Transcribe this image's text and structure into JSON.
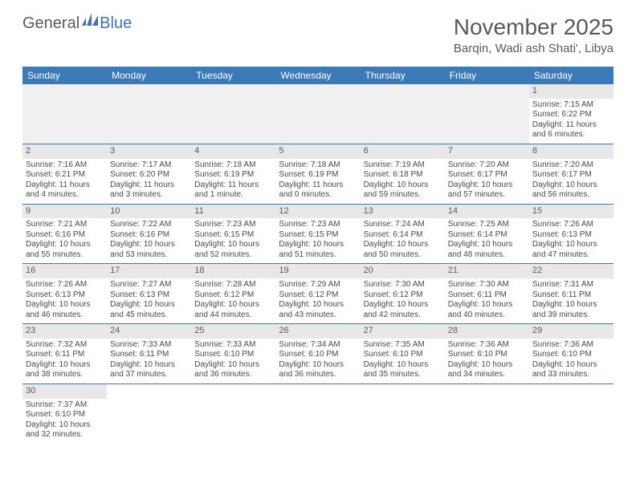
{
  "logo": {
    "general": "General",
    "blue": "Blue"
  },
  "title": "November 2025",
  "location": "Barqin, Wadi ash Shati', Libya",
  "day_headers": [
    "Sunday",
    "Monday",
    "Tuesday",
    "Wednesday",
    "Thursday",
    "Friday",
    "Saturday"
  ],
  "colors": {
    "header_bg": "#3a7ab8",
    "header_text": "#ffffff",
    "daynum_bg": "#e8e8e8",
    "text": "#4a4a4a",
    "border": "#3a7ab8"
  },
  "weeks": [
    [
      null,
      null,
      null,
      null,
      null,
      null,
      {
        "n": "1",
        "sr": "7:15 AM",
        "ss": "6:22 PM",
        "dl": "11 hours and 6 minutes."
      }
    ],
    [
      {
        "n": "2",
        "sr": "7:16 AM",
        "ss": "6:21 PM",
        "dl": "11 hours and 4 minutes."
      },
      {
        "n": "3",
        "sr": "7:17 AM",
        "ss": "6:20 PM",
        "dl": "11 hours and 3 minutes."
      },
      {
        "n": "4",
        "sr": "7:18 AM",
        "ss": "6:19 PM",
        "dl": "11 hours and 1 minute."
      },
      {
        "n": "5",
        "sr": "7:18 AM",
        "ss": "6:19 PM",
        "dl": "11 hours and 0 minutes."
      },
      {
        "n": "6",
        "sr": "7:19 AM",
        "ss": "6:18 PM",
        "dl": "10 hours and 59 minutes."
      },
      {
        "n": "7",
        "sr": "7:20 AM",
        "ss": "6:17 PM",
        "dl": "10 hours and 57 minutes."
      },
      {
        "n": "8",
        "sr": "7:20 AM",
        "ss": "6:17 PM",
        "dl": "10 hours and 56 minutes."
      }
    ],
    [
      {
        "n": "9",
        "sr": "7:21 AM",
        "ss": "6:16 PM",
        "dl": "10 hours and 55 minutes."
      },
      {
        "n": "10",
        "sr": "7:22 AM",
        "ss": "6:16 PM",
        "dl": "10 hours and 53 minutes."
      },
      {
        "n": "11",
        "sr": "7:23 AM",
        "ss": "6:15 PM",
        "dl": "10 hours and 52 minutes."
      },
      {
        "n": "12",
        "sr": "7:23 AM",
        "ss": "6:15 PM",
        "dl": "10 hours and 51 minutes."
      },
      {
        "n": "13",
        "sr": "7:24 AM",
        "ss": "6:14 PM",
        "dl": "10 hours and 50 minutes."
      },
      {
        "n": "14",
        "sr": "7:25 AM",
        "ss": "6:14 PM",
        "dl": "10 hours and 48 minutes."
      },
      {
        "n": "15",
        "sr": "7:26 AM",
        "ss": "6:13 PM",
        "dl": "10 hours and 47 minutes."
      }
    ],
    [
      {
        "n": "16",
        "sr": "7:26 AM",
        "ss": "6:13 PM",
        "dl": "10 hours and 46 minutes."
      },
      {
        "n": "17",
        "sr": "7:27 AM",
        "ss": "6:13 PM",
        "dl": "10 hours and 45 minutes."
      },
      {
        "n": "18",
        "sr": "7:28 AM",
        "ss": "6:12 PM",
        "dl": "10 hours and 44 minutes."
      },
      {
        "n": "19",
        "sr": "7:29 AM",
        "ss": "6:12 PM",
        "dl": "10 hours and 43 minutes."
      },
      {
        "n": "20",
        "sr": "7:30 AM",
        "ss": "6:12 PM",
        "dl": "10 hours and 42 minutes."
      },
      {
        "n": "21",
        "sr": "7:30 AM",
        "ss": "6:11 PM",
        "dl": "10 hours and 40 minutes."
      },
      {
        "n": "22",
        "sr": "7:31 AM",
        "ss": "6:11 PM",
        "dl": "10 hours and 39 minutes."
      }
    ],
    [
      {
        "n": "23",
        "sr": "7:32 AM",
        "ss": "6:11 PM",
        "dl": "10 hours and 38 minutes."
      },
      {
        "n": "24",
        "sr": "7:33 AM",
        "ss": "6:11 PM",
        "dl": "10 hours and 37 minutes."
      },
      {
        "n": "25",
        "sr": "7:33 AM",
        "ss": "6:10 PM",
        "dl": "10 hours and 36 minutes."
      },
      {
        "n": "26",
        "sr": "7:34 AM",
        "ss": "6:10 PM",
        "dl": "10 hours and 36 minutes."
      },
      {
        "n": "27",
        "sr": "7:35 AM",
        "ss": "6:10 PM",
        "dl": "10 hours and 35 minutes."
      },
      {
        "n": "28",
        "sr": "7:36 AM",
        "ss": "6:10 PM",
        "dl": "10 hours and 34 minutes."
      },
      {
        "n": "29",
        "sr": "7:36 AM",
        "ss": "6:10 PM",
        "dl": "10 hours and 33 minutes."
      }
    ],
    [
      {
        "n": "30",
        "sr": "7:37 AM",
        "ss": "6:10 PM",
        "dl": "10 hours and 32 minutes."
      },
      null,
      null,
      null,
      null,
      null,
      null
    ]
  ]
}
